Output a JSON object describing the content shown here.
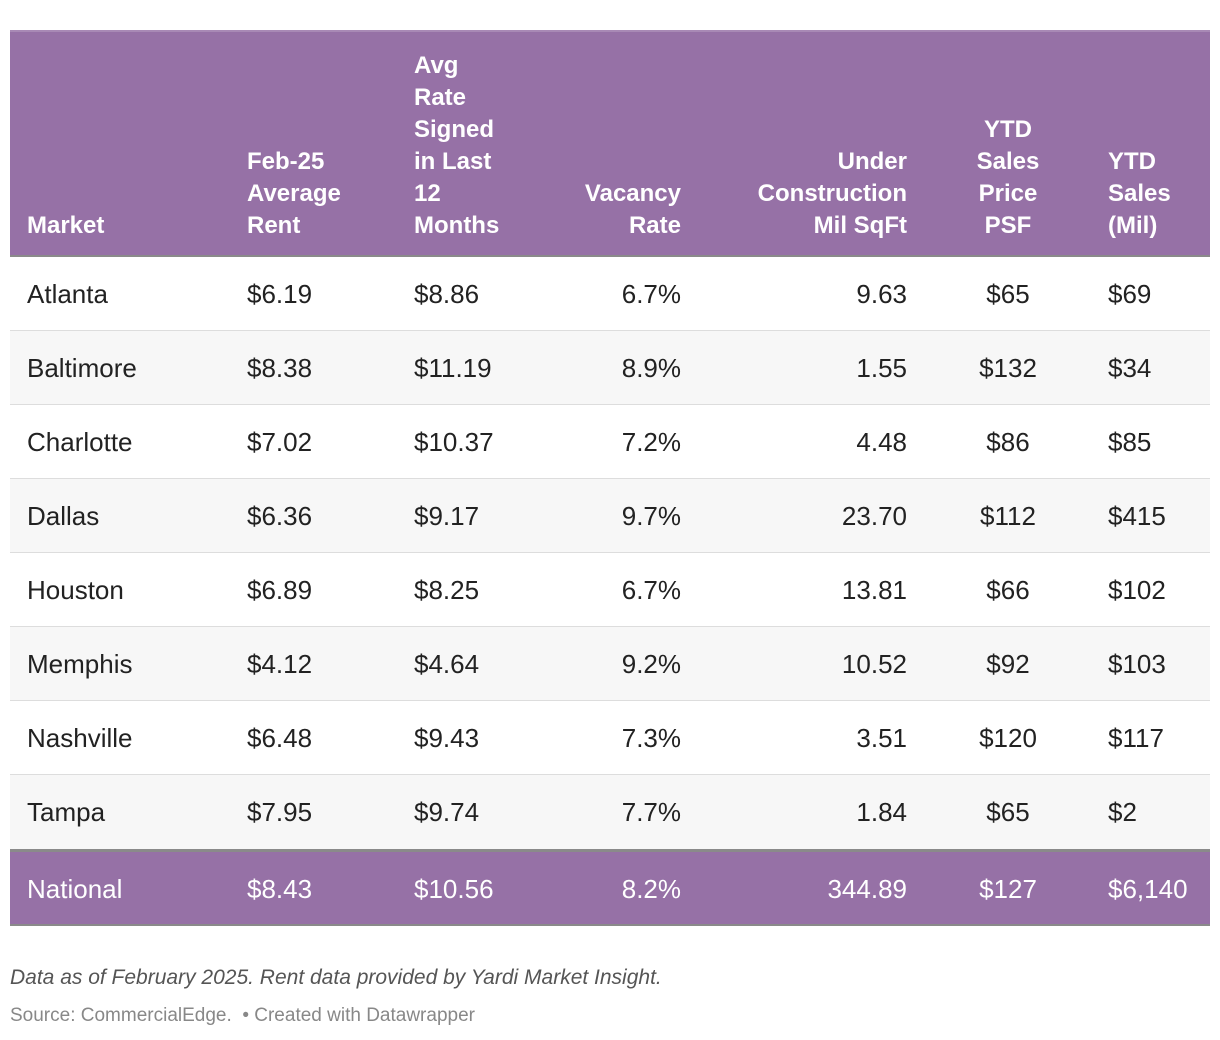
{
  "table": {
    "header": [
      "Market",
      "Feb-25 Average Rent",
      "Avg Rate Signed in Last 12 Months",
      "Vacancy Rate",
      "Under Construction Mil SqFt",
      "YTD Sales Price PSF",
      "YTD Sales (Mil)"
    ],
    "rows": [
      [
        "Atlanta",
        "$6.19",
        "$8.86",
        "6.7%",
        "9.63",
        "$65",
        "$69"
      ],
      [
        "Baltimore",
        "$8.38",
        "$11.19",
        "8.9%",
        "1.55",
        "$132",
        "$34"
      ],
      [
        "Charlotte",
        "$7.02",
        "$10.37",
        "7.2%",
        "4.48",
        "$86",
        "$85"
      ],
      [
        "Dallas",
        "$6.36",
        "$9.17",
        "9.7%",
        "23.70",
        "$112",
        "$415"
      ],
      [
        "Houston",
        "$6.89",
        "$8.25",
        "6.7%",
        "13.81",
        "$66",
        "$102"
      ],
      [
        "Memphis",
        "$4.12",
        "$4.64",
        "9.2%",
        "10.52",
        "$92",
        "$103"
      ],
      [
        "Nashville",
        "$6.48",
        "$9.43",
        "7.3%",
        "3.51",
        "$120",
        "$117"
      ],
      [
        "Tampa",
        "$7.95",
        "$9.74",
        "7.7%",
        "1.84",
        "$65",
        "$2"
      ]
    ],
    "total": [
      "National",
      "$8.43",
      "$10.56",
      "8.2%",
      "344.89",
      "$127",
      "$6,140"
    ]
  },
  "note": "Data as of February 2025. Rent data provided by Yardi Market Insight.",
  "source": "Source: CommercialEdge.",
  "credit": "• Created with Datawrapper"
}
